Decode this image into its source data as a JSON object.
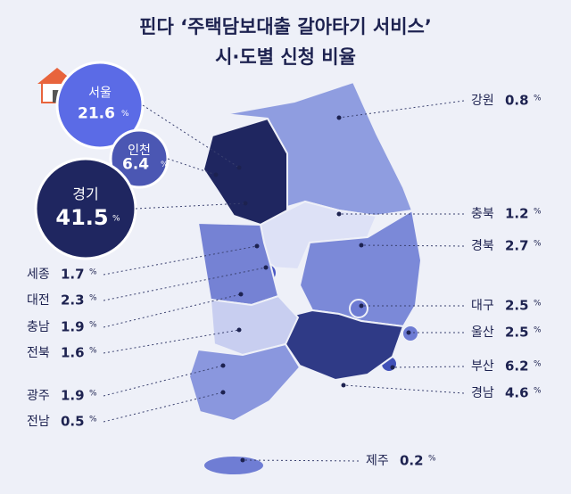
{
  "title": {
    "line1": "핀다 ‘주택담보대출 갈아타기 서비스’",
    "line2": "시·도별 신청 비율"
  },
  "map": {
    "unit": "%",
    "regions": [
      {
        "name": "서울",
        "value": 21.6,
        "color": "#5b6be6"
      },
      {
        "name": "인천",
        "value": 6.4,
        "color": "#4b57b3"
      },
      {
        "name": "경기",
        "value": 41.5,
        "color": "#1f2660"
      },
      {
        "name": "강원",
        "value": 0.8,
        "color": "#8f9de0"
      },
      {
        "name": "충북",
        "value": 1.2,
        "color": "#dde1f6"
      },
      {
        "name": "경북",
        "value": 2.7,
        "color": "#7b89d8"
      },
      {
        "name": "대구",
        "value": 2.5,
        "color": "#6d7bd3"
      },
      {
        "name": "울산",
        "value": 2.5,
        "color": "#6d7bd3"
      },
      {
        "name": "부산",
        "value": 6.2,
        "color": "#4050b8"
      },
      {
        "name": "경남",
        "value": 4.6,
        "color": "#2f3a86"
      },
      {
        "name": "제주",
        "value": 0.2,
        "color": "#6f7dd4"
      },
      {
        "name": "세종",
        "value": 1.7,
        "color": "#6977d0"
      },
      {
        "name": "대전",
        "value": 2.3,
        "color": "#4a58c4"
      },
      {
        "name": "충남",
        "value": 1.9,
        "color": "#7582d4"
      },
      {
        "name": "전북",
        "value": 1.6,
        "color": "#c8cef0"
      },
      {
        "name": "광주",
        "value": 1.9,
        "color": "#5c6ad0"
      },
      {
        "name": "전남",
        "value": 0.5,
        "color": "#8a97de"
      }
    ]
  }
}
